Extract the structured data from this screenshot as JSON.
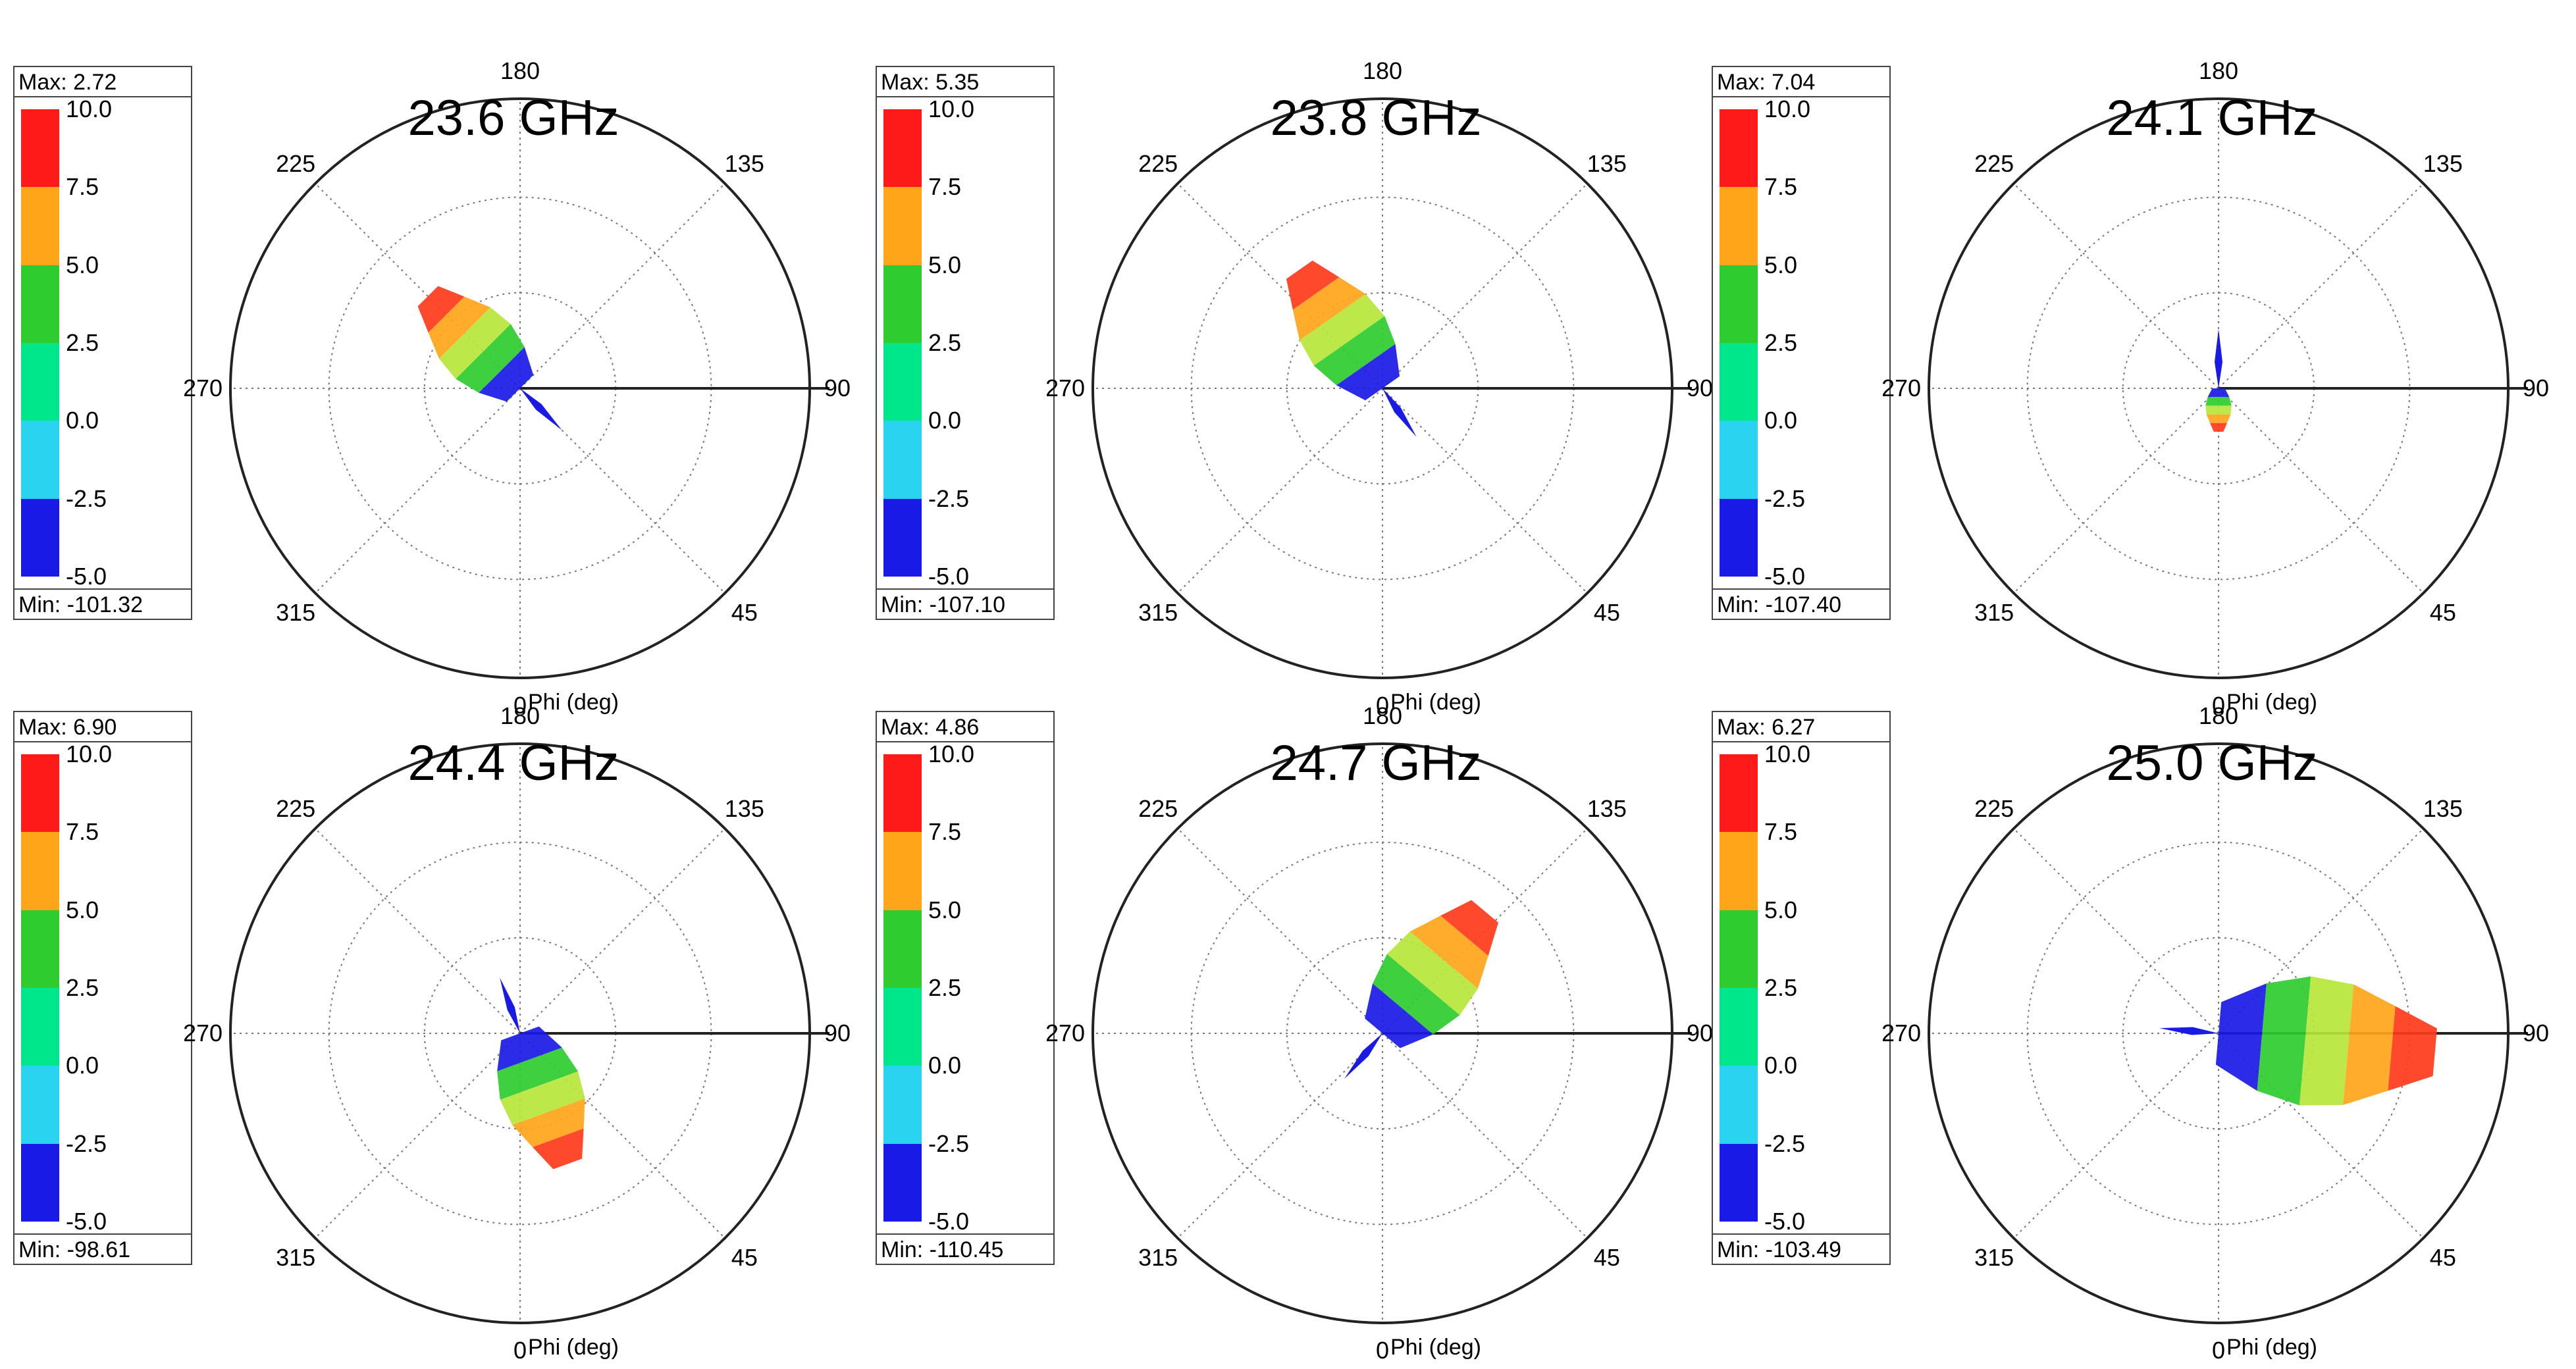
{
  "chart_data": [
    {
      "type": "polar",
      "title": "23.6 GHz",
      "legend": {
        "max": "Max: 2.72",
        "min": "Min: -101.32"
      },
      "main_lobe_phi_deg": 225,
      "relative_extent": 0.45,
      "peak_dB": 2.72
    },
    {
      "type": "polar",
      "title": "23.8 GHz",
      "legend": {
        "max": "Max: 5.35",
        "min": "Min: -107.10"
      },
      "main_lobe_phi_deg": 215,
      "relative_extent": 0.5,
      "peak_dB": 5.35
    },
    {
      "type": "polar",
      "title": "24.1 GHz",
      "legend": {
        "max": "Max: 7.04",
        "min": "Min: -107.40"
      },
      "main_lobe_phi_deg": 0,
      "relative_extent": 0.15,
      "peak_dB": 7.04
    },
    {
      "type": "polar",
      "title": "24.4 GHz",
      "legend": {
        "max": "Max: 6.90",
        "min": "Min: -98.61"
      },
      "main_lobe_phi_deg": 20,
      "relative_extent": 0.48,
      "peak_dB": 6.9
    },
    {
      "type": "polar",
      "title": "24.7 GHz",
      "legend": {
        "max": "Max: 4.86",
        "min": "Min: -110.45"
      },
      "main_lobe_phi_deg": 140,
      "relative_extent": 0.55,
      "peak_dB": 4.86
    },
    {
      "type": "polar",
      "title": "25.0 GHz",
      "legend": {
        "max": "Max: 6.27",
        "min": "Min: -103.49"
      },
      "main_lobe_phi_deg": 85,
      "relative_extent": 0.75,
      "peak_dB": 6.27
    }
  ],
  "shared": {
    "colorbar_ticks": [
      "10.0",
      "7.5",
      "5.0",
      "2.5",
      "0.0",
      "-2.5",
      "-5.0"
    ],
    "colorbar_colors": [
      "#ff1a1a",
      "#ffa51a",
      "#2ecc2e",
      "#00e68a",
      "#2ad4f0",
      "#1a1ae6"
    ],
    "angle_labels": [
      "180",
      "135",
      "90",
      "45",
      "0",
      "315",
      "270",
      "225"
    ],
    "axis_label": "Phi (deg)"
  }
}
